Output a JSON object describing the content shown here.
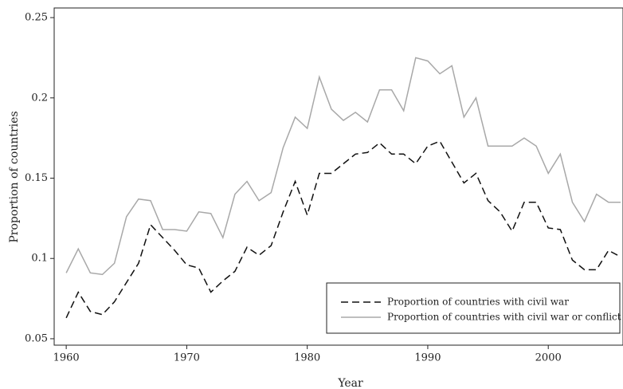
{
  "chart_data": {
    "type": "line",
    "xlabel": "Year",
    "ylabel": "Proportion of countries",
    "x": [
      1960,
      1961,
      1962,
      1963,
      1964,
      1965,
      1966,
      1967,
      1968,
      1969,
      1970,
      1971,
      1972,
      1973,
      1974,
      1975,
      1976,
      1977,
      1978,
      1979,
      1980,
      1981,
      1982,
      1983,
      1984,
      1985,
      1986,
      1987,
      1988,
      1989,
      1990,
      1991,
      1992,
      1993,
      1994,
      1995,
      1996,
      1997,
      1998,
      1999,
      2000,
      2001,
      2002,
      2003,
      2004,
      2005,
      2006
    ],
    "series": [
      {
        "name": "Proportion of countries with civil war",
        "color": "#111111",
        "linestyle": "dashed",
        "values": [
          0.063,
          0.079,
          0.067,
          0.065,
          0.073,
          0.085,
          0.097,
          0.121,
          0.113,
          0.105,
          0.096,
          0.094,
          0.079,
          0.086,
          0.092,
          0.107,
          0.102,
          0.108,
          0.129,
          0.148,
          0.127,
          0.153,
          0.153,
          0.159,
          0.165,
          0.166,
          0.172,
          0.165,
          0.165,
          0.159,
          0.17,
          0.173,
          0.16,
          0.147,
          0.153,
          0.136,
          0.129,
          0.117,
          0.135,
          0.135,
          0.119,
          0.118,
          0.099,
          0.093,
          0.093,
          0.105,
          0.101
        ]
      },
      {
        "name": "Proportion of countries with civil war or conflict",
        "color": "#a8a8a8",
        "linestyle": "solid",
        "values": [
          0.091,
          0.106,
          0.091,
          0.09,
          0.097,
          0.126,
          0.137,
          0.136,
          0.118,
          0.118,
          0.117,
          0.129,
          0.128,
          0.113,
          0.14,
          0.148,
          0.136,
          0.141,
          0.169,
          0.188,
          0.181,
          0.213,
          0.193,
          0.186,
          0.191,
          0.185,
          0.205,
          0.205,
          0.192,
          0.225,
          0.223,
          0.215,
          0.22,
          0.188,
          0.2,
          0.17,
          0.17,
          0.17,
          0.175,
          0.17,
          0.153,
          0.165,
          0.135,
          0.123,
          0.14,
          0.135,
          0.135
        ]
      }
    ],
    "xlim": [
      1959,
      2006.2
    ],
    "xticks": [
      1960,
      1970,
      1980,
      1990,
      2000
    ],
    "ylim": [
      0.046,
      0.256
    ],
    "yticks": [
      0.05,
      0.1,
      0.15,
      0.2,
      0.25
    ],
    "grid": false,
    "legend": "lower right"
  }
}
